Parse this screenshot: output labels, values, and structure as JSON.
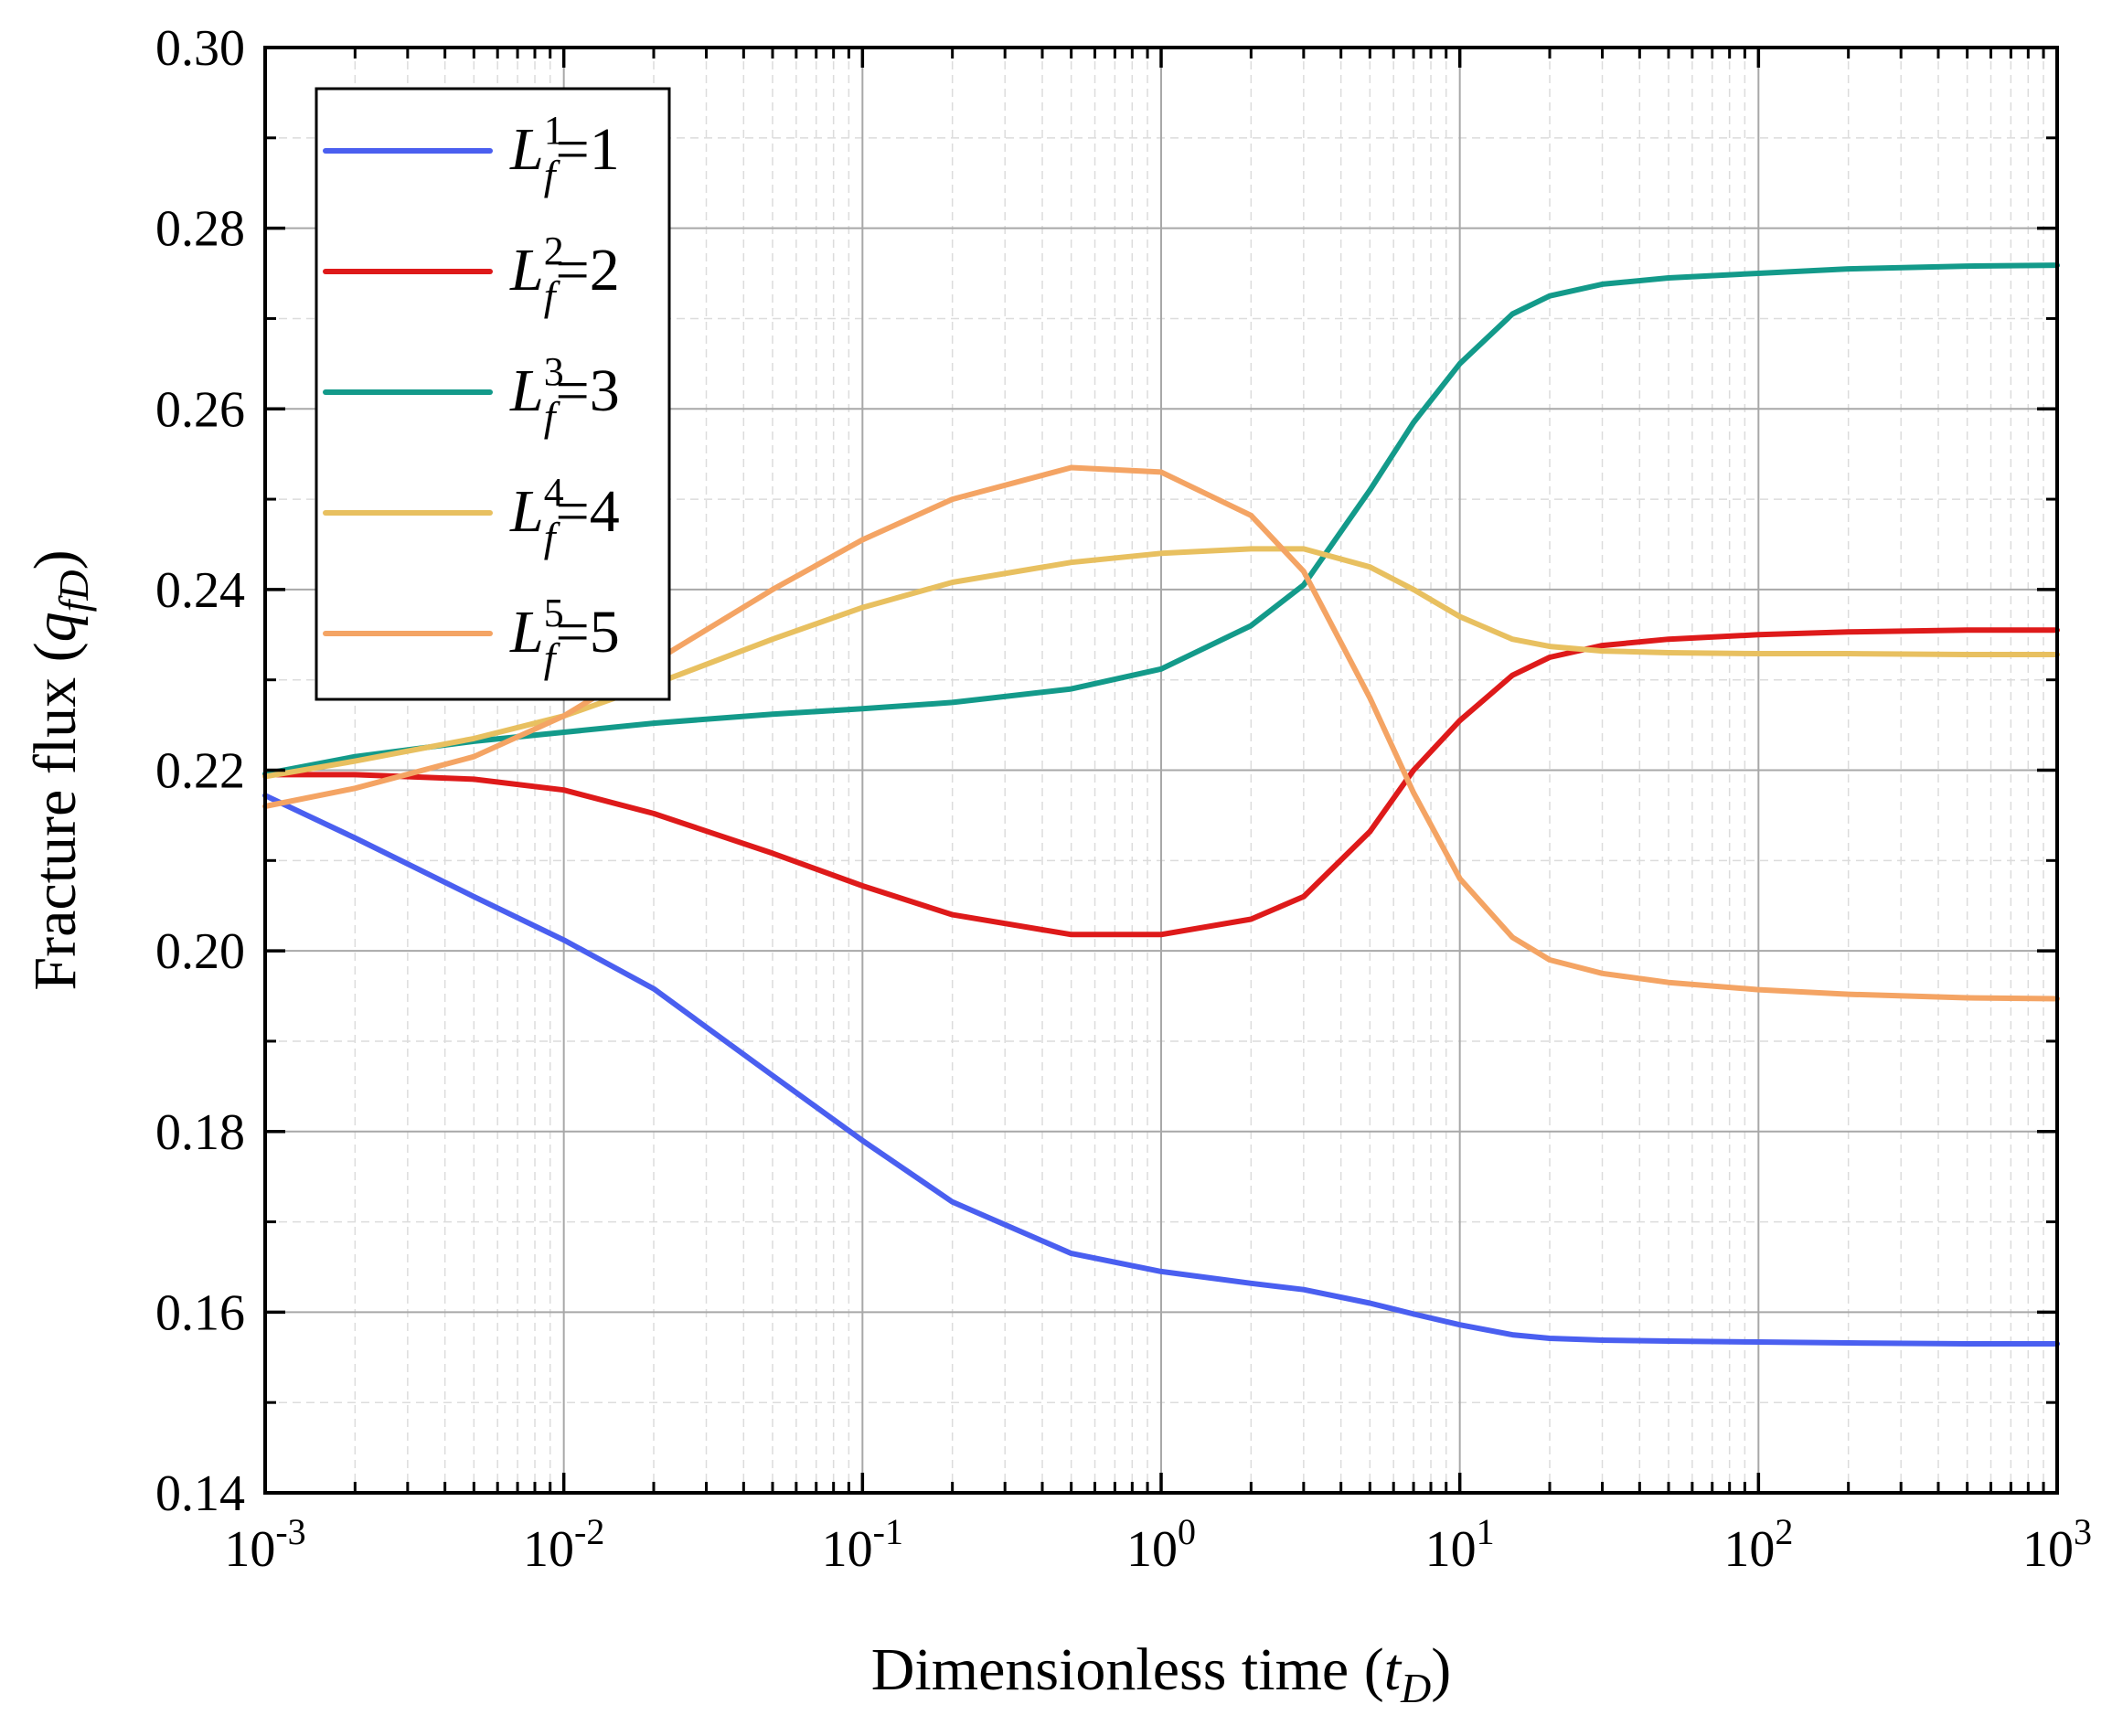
{
  "chart_data": {
    "type": "line",
    "x_scale": "log",
    "xlabel": {
      "prefix": "Dimensionless time (",
      "var": "t",
      "sub": "D",
      "suffix": ")"
    },
    "ylabel": {
      "prefix": "Fracture flux (",
      "var": "q",
      "sub": "fD",
      "suffix": ")"
    },
    "xlim": [
      0.001,
      1000
    ],
    "ylim": [
      0.14,
      0.3
    ],
    "x_ticks": [
      {
        "base": "10",
        "exp": "-3"
      },
      {
        "base": "10",
        "exp": "-2"
      },
      {
        "base": "10",
        "exp": "-1"
      },
      {
        "base": "10",
        "exp": "0"
      },
      {
        "base": "10",
        "exp": "1"
      },
      {
        "base": "10",
        "exp": "2"
      },
      {
        "base": "10",
        "exp": "3"
      }
    ],
    "y_ticks": [
      "0.14",
      "0.16",
      "0.18",
      "0.20",
      "0.22",
      "0.24",
      "0.26",
      "0.28",
      "0.30"
    ],
    "grid": true,
    "legend_position": "top-left",
    "x": [
      0.001,
      0.002,
      0.005,
      0.01,
      0.02,
      0.05,
      0.1,
      0.2,
      0.5,
      1,
      2,
      3,
      5,
      7,
      10,
      15,
      20,
      30,
      50,
      100,
      200,
      500,
      1000
    ],
    "series": [
      {
        "name": "Lf1",
        "legend": {
          "base": "L",
          "sub": "f",
          "sup": "1",
          "value": "=1"
        },
        "color": "#4a5ff0",
        "values": [
          0.2172,
          0.2125,
          0.206,
          0.2012,
          0.1958,
          0.1862,
          0.179,
          0.1722,
          0.1665,
          0.1645,
          0.1632,
          0.1625,
          0.161,
          0.1598,
          0.1586,
          0.1575,
          0.1571,
          0.1569,
          0.1568,
          0.1567,
          0.1566,
          0.1565,
          0.1565
        ]
      },
      {
        "name": "Lf2",
        "legend": {
          "base": "L",
          "sub": "f",
          "sup": "2",
          "value": "=2"
        },
        "color": "#de1a1a",
        "values": [
          0.2195,
          0.2195,
          0.219,
          0.2178,
          0.2152,
          0.2108,
          0.2072,
          0.204,
          0.2018,
          0.2018,
          0.2035,
          0.206,
          0.2132,
          0.22,
          0.2255,
          0.2305,
          0.2325,
          0.2338,
          0.2345,
          0.235,
          0.2353,
          0.2355,
          0.2355
        ]
      },
      {
        "name": "Lf3",
        "legend": {
          "base": "L",
          "sub": "f",
          "sup": "3",
          "value": "=3"
        },
        "color": "#139a8a",
        "values": [
          0.2196,
          0.2215,
          0.2232,
          0.2242,
          0.2252,
          0.2262,
          0.2268,
          0.2275,
          0.229,
          0.2312,
          0.236,
          0.2405,
          0.251,
          0.2585,
          0.265,
          0.2705,
          0.2725,
          0.2738,
          0.2745,
          0.275,
          0.2755,
          0.2758,
          0.2759
        ]
      },
      {
        "name": "Lf4",
        "legend": {
          "base": "L",
          "sub": "f",
          "sup": "4",
          "value": "=4"
        },
        "color": "#e8c060",
        "values": [
          0.2193,
          0.221,
          0.2235,
          0.226,
          0.2295,
          0.2345,
          0.238,
          0.2408,
          0.243,
          0.244,
          0.2445,
          0.2445,
          0.2425,
          0.24,
          0.237,
          0.2345,
          0.2337,
          0.2332,
          0.233,
          0.2329,
          0.2329,
          0.2328,
          0.2328
        ]
      },
      {
        "name": "Lf5",
        "legend": {
          "base": "L",
          "sub": "f",
          "sup": "5",
          "value": "=5"
        },
        "color": "#f4a464",
        "values": [
          0.216,
          0.218,
          0.2215,
          0.226,
          0.232,
          0.24,
          0.2455,
          0.25,
          0.2535,
          0.253,
          0.2482,
          0.242,
          0.228,
          0.2175,
          0.208,
          0.2015,
          0.199,
          0.1975,
          0.1965,
          0.1957,
          0.1952,
          0.1948,
          0.1947
        ]
      }
    ]
  }
}
